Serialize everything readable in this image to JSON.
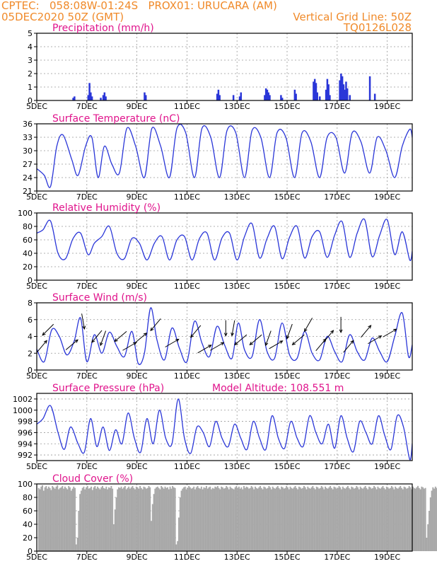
{
  "header": {
    "line1": "CPTEC:   058:08W-01:24S   PROX01: URUCARA (AM)",
    "line2_left": "05DEC2020 50Z (GMT)",
    "line2_right": "Vertical Grid Line: 50Z",
    "line3_right": "TQ0126L028",
    "model_altitude": "Model Altitude: 108.551 m"
  },
  "colors": {
    "series": "#2a36d8",
    "title": "#e0148c",
    "header": "#f08a2a",
    "cloud": "#a8a8a8",
    "grid": "#999999"
  },
  "x_axis": {
    "days": [
      5,
      20
    ],
    "tick_labels": [
      "5DEC",
      "7DEC",
      "9DEC",
      "11DEC",
      "13DEC",
      "15DEC",
      "17DEC",
      "19DEC"
    ],
    "tick_days": [
      5,
      7,
      9,
      11,
      13,
      15,
      17,
      19
    ]
  },
  "chart_data": [
    {
      "id": "precip",
      "type": "bar",
      "title": "Precipitation (mm/h)",
      "ylim": [
        0,
        5
      ],
      "yticks": [
        0,
        1,
        2,
        3,
        4,
        5
      ],
      "bars": [
        [
          6.45,
          0.2
        ],
        [
          6.5,
          0.3
        ],
        [
          7.05,
          0.4
        ],
        [
          7.1,
          1.3
        ],
        [
          7.15,
          0.6
        ],
        [
          7.2,
          0.3
        ],
        [
          7.55,
          0.2
        ],
        [
          7.65,
          0.4
        ],
        [
          7.7,
          0.6
        ],
        [
          7.75,
          0.3
        ],
        [
          9.3,
          0.6
        ],
        [
          9.35,
          0.4
        ],
        [
          12.2,
          0.5
        ],
        [
          12.25,
          0.8
        ],
        [
          12.3,
          0.4
        ],
        [
          12.85,
          0.4
        ],
        [
          13.1,
          0.3
        ],
        [
          13.15,
          0.6
        ],
        [
          14.1,
          0.4
        ],
        [
          14.15,
          0.9
        ],
        [
          14.2,
          0.8
        ],
        [
          14.25,
          0.6
        ],
        [
          14.3,
          0.4
        ],
        [
          14.75,
          0.4
        ],
        [
          14.8,
          0.2
        ],
        [
          15.3,
          0.8
        ],
        [
          15.35,
          0.5
        ],
        [
          16.05,
          1.4
        ],
        [
          16.1,
          1.6
        ],
        [
          16.15,
          1.3
        ],
        [
          16.2,
          0.6
        ],
        [
          16.3,
          0.3
        ],
        [
          16.55,
          0.8
        ],
        [
          16.6,
          1.6
        ],
        [
          16.65,
          1.2
        ],
        [
          16.7,
          0.4
        ],
        [
          17.1,
          1.5
        ],
        [
          17.15,
          2.0
        ],
        [
          17.2,
          1.8
        ],
        [
          17.25,
          1.2
        ],
        [
          17.3,
          0.8
        ],
        [
          17.35,
          1.4
        ],
        [
          17.4,
          0.9
        ],
        [
          17.5,
          0.4
        ],
        [
          18.3,
          1.8
        ],
        [
          18.5,
          0.5
        ]
      ]
    },
    {
      "id": "temp",
      "type": "line",
      "title": "Surface Temperature (nC)",
      "ylim": [
        21,
        36
      ],
      "yticks": [
        21,
        24,
        27,
        30,
        33,
        36
      ],
      "x": [
        5,
        5.3,
        5.55,
        5.8,
        6.05,
        6.4,
        6.65,
        6.95,
        7.2,
        7.45,
        7.7,
        8.0,
        8.3,
        8.6,
        8.95,
        9.3,
        9.6,
        9.95,
        10.3,
        10.6,
        10.95,
        11.3,
        11.6,
        11.95,
        12.3,
        12.6,
        12.95,
        13.3,
        13.6,
        13.95,
        14.3,
        14.6,
        14.95,
        15.3,
        15.6,
        15.95,
        16.3,
        16.6,
        16.95,
        17.3,
        17.6,
        17.95,
        18.3,
        18.6,
        18.95,
        19.3,
        19.6,
        19.9,
        20
      ],
      "y": [
        26,
        24.5,
        22,
        31,
        33.5,
        28,
        24.5,
        31,
        33,
        24,
        31,
        27,
        25,
        35,
        31,
        24,
        35,
        31,
        24,
        35,
        34,
        24,
        35,
        33,
        24,
        34.5,
        34,
        24,
        34.5,
        33,
        24,
        34,
        33,
        24,
        34,
        32,
        24,
        33,
        33,
        25,
        34,
        32,
        25,
        33,
        30,
        24,
        31,
        34.8,
        33
      ]
    },
    {
      "id": "rh",
      "type": "line",
      "title": "Relative Humidity (%)",
      "ylim": [
        0,
        100
      ],
      "yticks": [
        0,
        20,
        40,
        60,
        80,
        100
      ],
      "x": [
        5,
        5.25,
        5.55,
        5.85,
        6.15,
        6.45,
        6.75,
        7.05,
        7.3,
        7.6,
        7.9,
        8.2,
        8.5,
        8.8,
        9.1,
        9.4,
        9.7,
        10.0,
        10.3,
        10.6,
        10.9,
        11.2,
        11.5,
        11.8,
        12.1,
        12.4,
        12.7,
        13.0,
        13.3,
        13.6,
        13.9,
        14.2,
        14.5,
        14.8,
        15.1,
        15.4,
        15.7,
        16.0,
        16.3,
        16.6,
        16.9,
        17.2,
        17.5,
        17.8,
        18.1,
        18.4,
        18.7,
        19.0,
        19.3,
        19.6,
        19.9,
        20
      ],
      "y": [
        70,
        75,
        88,
        40,
        32,
        62,
        70,
        38,
        55,
        65,
        80,
        40,
        32,
        62,
        55,
        30,
        55,
        65,
        30,
        60,
        65,
        30,
        62,
        70,
        30,
        63,
        70,
        30,
        65,
        84,
        33,
        62,
        80,
        32,
        64,
        80,
        33,
        65,
        72,
        34,
        67,
        87,
        34,
        70,
        90,
        35,
        67,
        90,
        38,
        72,
        30,
        43
      ]
    },
    {
      "id": "wind",
      "type": "line",
      "title": "Surface Wind (m/s)",
      "ylim": [
        0,
        8
      ],
      "yticks": [
        0,
        2,
        4,
        6,
        8
      ],
      "x": [
        5,
        5.3,
        5.6,
        5.9,
        6.2,
        6.5,
        6.75,
        7.0,
        7.3,
        7.6,
        7.9,
        8.2,
        8.5,
        8.8,
        9.05,
        9.3,
        9.55,
        9.8,
        10.1,
        10.4,
        10.7,
        11.0,
        11.3,
        11.6,
        11.9,
        12.2,
        12.5,
        12.8,
        13.05,
        13.3,
        13.6,
        13.9,
        14.2,
        14.5,
        14.8,
        15.1,
        15.4,
        15.7,
        16.0,
        16.3,
        16.6,
        16.9,
        17.2,
        17.5,
        17.8,
        18.1,
        18.4,
        18.7,
        19.0,
        19.3,
        19.6,
        19.85,
        20
      ],
      "y": [
        2.5,
        1.0,
        4.8,
        4.0,
        1.8,
        3.5,
        6.2,
        1.0,
        4.2,
        2.0,
        4.5,
        2.8,
        1.6,
        4.6,
        0.8,
        2.0,
        7.4,
        3.6,
        1.2,
        5.0,
        2.6,
        1.0,
        5.8,
        3.2,
        1.6,
        5.2,
        3.0,
        1.4,
        5.6,
        2.4,
        1.6,
        6.0,
        2.2,
        1.4,
        5.6,
        1.8,
        1.4,
        4.6,
        2.0,
        1.2,
        4.0,
        2.2,
        1.0,
        4.2,
        2.2,
        1.2,
        3.8,
        2.2,
        1.0,
        4.0,
        6.8,
        1.6,
        3.0
      ],
      "arrows": [
        [
          5.2,
          2.8,
          40
        ],
        [
          5.45,
          4.8,
          225
        ],
        [
          6.4,
          3.0,
          50
        ],
        [
          6.85,
          5.8,
          170
        ],
        [
          7.4,
          4.0,
          220
        ],
        [
          7.65,
          3.8,
          200
        ],
        [
          8.35,
          4.0,
          230
        ],
        [
          8.7,
          2.8,
          60
        ],
        [
          9.15,
          3.8,
          50
        ],
        [
          9.75,
          5.4,
          220
        ],
        [
          10.4,
          3.2,
          60
        ],
        [
          11.35,
          4.6,
          220
        ],
        [
          11.7,
          2.5,
          60
        ],
        [
          12.2,
          2.8,
          60
        ],
        [
          12.55,
          5.0,
          180
        ],
        [
          12.85,
          5.0,
          190
        ],
        [
          13.15,
          3.6,
          230
        ],
        [
          13.75,
          3.6,
          230
        ],
        [
          14.25,
          3.8,
          200
        ],
        [
          14.55,
          3.0,
          60
        ],
        [
          15.1,
          4.6,
          200
        ],
        [
          15.45,
          3.6,
          230
        ],
        [
          15.85,
          5.4,
          210
        ],
        [
          16.35,
          3.0,
          40
        ],
        [
          16.65,
          4.0,
          40
        ],
        [
          17.15,
          5.4,
          180
        ],
        [
          17.45,
          2.8,
          40
        ],
        [
          18.15,
          4.6,
          40
        ],
        [
          18.5,
          3.6,
          60
        ],
        [
          19.1,
          4.4,
          60
        ]
      ]
    },
    {
      "id": "pres",
      "type": "line",
      "title": "Surface Pressure (hPa)",
      "ylim": [
        991,
        1003
      ],
      "yticks": [
        992,
        994,
        996,
        998,
        1000,
        1002
      ],
      "x": [
        5,
        5.25,
        5.55,
        5.85,
        6.1,
        6.35,
        6.65,
        6.9,
        7.15,
        7.4,
        7.65,
        7.9,
        8.15,
        8.4,
        8.65,
        8.9,
        9.15,
        9.4,
        9.65,
        9.9,
        10.15,
        10.4,
        10.65,
        10.9,
        11.15,
        11.4,
        11.65,
        11.9,
        12.15,
        12.4,
        12.65,
        12.9,
        13.15,
        13.4,
        13.65,
        13.9,
        14.15,
        14.4,
        14.65,
        14.9,
        15.15,
        15.4,
        15.65,
        15.9,
        16.15,
        16.4,
        16.65,
        16.9,
        17.15,
        17.4,
        17.65,
        17.9,
        18.15,
        18.4,
        18.65,
        18.9,
        19.15,
        19.4,
        19.65,
        19.9,
        20
      ],
      "y": [
        997.5,
        998.5,
        1000.8,
        996,
        993,
        997,
        994,
        992.5,
        998.5,
        993.5,
        997,
        992.8,
        996.5,
        994,
        999.5,
        995,
        992.5,
        998.5,
        994,
        1000,
        995,
        994,
        1002,
        995,
        992.3,
        997,
        996,
        993.5,
        998,
        995,
        993.5,
        997.5,
        995,
        993,
        998,
        995,
        993,
        999,
        995,
        993.2,
        998,
        995,
        993.6,
        999,
        996,
        994,
        997.5,
        993.2,
        999,
        995,
        992.6,
        998,
        996,
        994,
        999,
        995.5,
        993,
        999,
        997,
        991.2,
        994
      ]
    },
    {
      "id": "cloud",
      "type": "bar",
      "title": "Cloud Cover (%)",
      "ylim": [
        0,
        100
      ],
      "yticks": [
        0,
        20,
        40,
        60,
        80,
        100
      ],
      "x_start": 5.05,
      "dx": 0.05,
      "values": [
        94,
        92,
        96,
        98,
        90,
        95,
        97,
        93,
        96,
        94,
        91,
        97,
        95,
        93,
        96,
        98,
        92,
        94,
        95,
        97,
        93,
        96,
        94,
        92,
        97,
        95,
        90,
        93,
        96,
        94,
        10,
        20,
        60,
        85,
        90,
        94,
        96,
        92,
        95,
        97,
        93,
        94,
        96,
        91,
        95,
        97,
        93,
        96,
        94,
        92,
        95,
        97,
        94,
        93,
        96,
        92,
        95,
        94,
        97,
        93,
        40,
        62,
        80,
        92,
        95,
        94,
        96,
        93,
        95,
        97,
        92,
        94,
        96,
        93,
        95,
        97,
        94,
        92,
        96,
        95,
        93,
        97,
        94,
        92,
        96,
        95,
        93,
        94,
        97,
        95,
        45,
        70,
        85,
        93,
        95,
        96,
        94,
        92,
        97,
        95,
        93,
        96,
        94,
        95,
        92,
        96,
        93,
        97,
        95,
        94,
        10,
        15,
        50,
        80,
        90,
        93,
        95,
        96,
        92,
        94,
        97,
        95,
        93,
        94,
        96,
        92,
        95,
        97,
        94,
        93,
        96,
        92,
        95,
        94,
        97,
        93,
        95,
        96,
        92,
        94,
        93,
        96,
        95,
        97,
        94,
        92,
        96,
        95,
        93,
        94,
        97,
        95,
        92,
        96,
        94,
        93,
        92,
        95,
        97,
        94,
        96,
        93,
        95,
        92,
        97,
        94,
        96,
        95,
        93,
        94,
        97,
        95,
        92,
        96,
        94,
        93,
        95,
        97,
        94,
        92,
        96,
        95,
        93,
        94,
        97,
        95,
        92,
        96,
        94,
        93,
        95,
        97,
        94,
        92,
        96,
        95,
        93,
        94,
        97,
        95,
        92,
        96,
        94,
        93,
        95,
        97,
        94,
        92,
        96,
        95,
        93,
        94,
        97,
        95,
        92,
        96,
        94,
        93,
        95,
        97,
        94,
        92,
        96,
        95,
        93,
        94,
        97,
        95,
        92,
        96,
        94,
        93,
        95,
        97,
        94,
        92,
        96,
        95,
        93,
        94,
        97,
        95,
        92,
        96,
        94,
        93,
        95,
        97,
        94,
        92,
        96,
        95,
        93,
        94,
        97,
        95,
        92,
        96,
        94,
        93,
        95,
        97,
        94,
        92,
        96,
        95,
        93,
        94,
        97,
        95,
        92,
        96,
        94,
        93,
        95,
        97,
        94,
        92,
        96,
        95,
        93,
        94,
        97,
        95,
        92,
        96,
        94,
        93,
        95,
        97,
        94,
        92,
        96,
        95,
        93,
        94,
        97,
        95,
        92,
        96,
        94,
        93,
        95,
        97,
        94,
        92,
        96,
        95,
        93,
        94,
        20,
        40,
        60,
        80,
        90,
        95,
        93,
        96,
        94,
        92,
        95,
        97,
        94,
        93,
        96,
        92,
        95,
        94,
        97,
        93,
        0
      ]
    }
  ]
}
